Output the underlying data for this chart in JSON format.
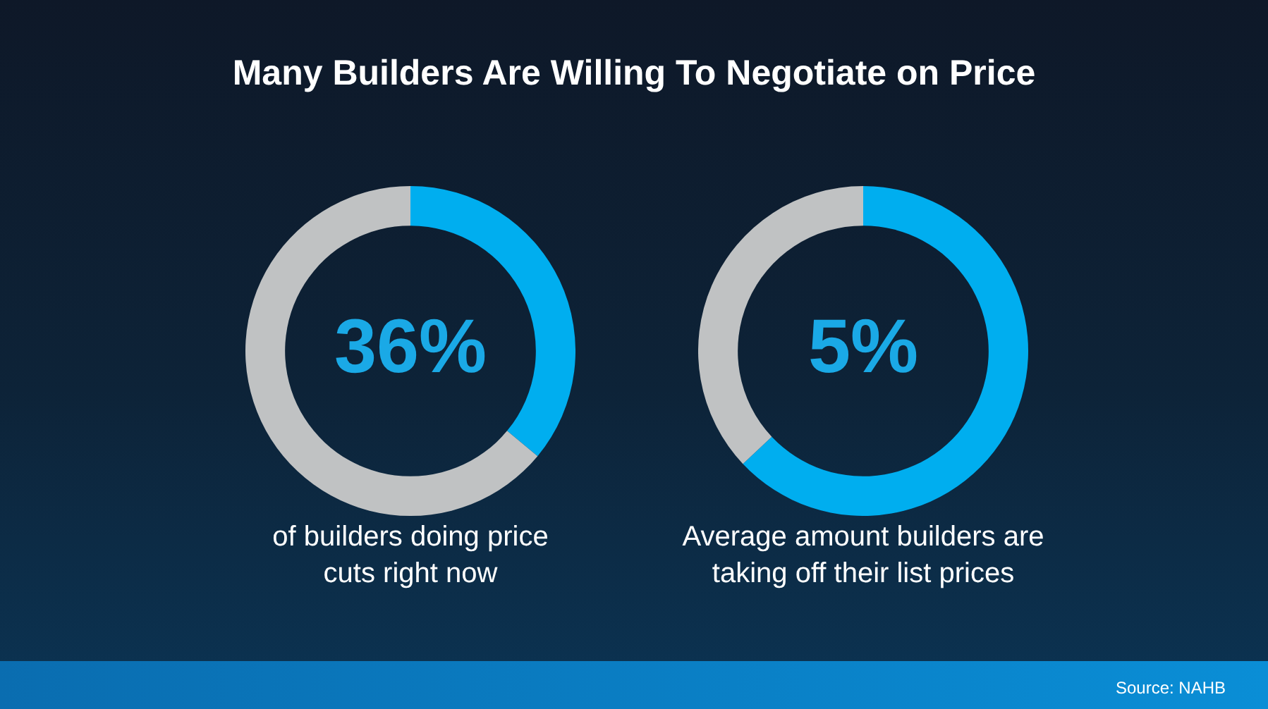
{
  "chart_data": [
    {
      "type": "donut",
      "title": "Many Builders Are Willing To Negotiate on Price",
      "categories": [
        null,
        null
      ],
      "values": [
        36,
        64
      ],
      "colors": [
        "#00aeef",
        "#c0c2c3"
      ],
      "annotations": [
        "36%",
        "of builders doing price cuts right now"
      ]
    },
    {
      "type": "donut",
      "categories": [
        null,
        null
      ],
      "values": [
        63,
        37
      ],
      "colors": [
        "#00aeef",
        "#c0c2c3"
      ],
      "annotations": [
        "5%",
        "Average amount builders are taking off their list prices",
        "Source: NAHB"
      ]
    }
  ]
}
